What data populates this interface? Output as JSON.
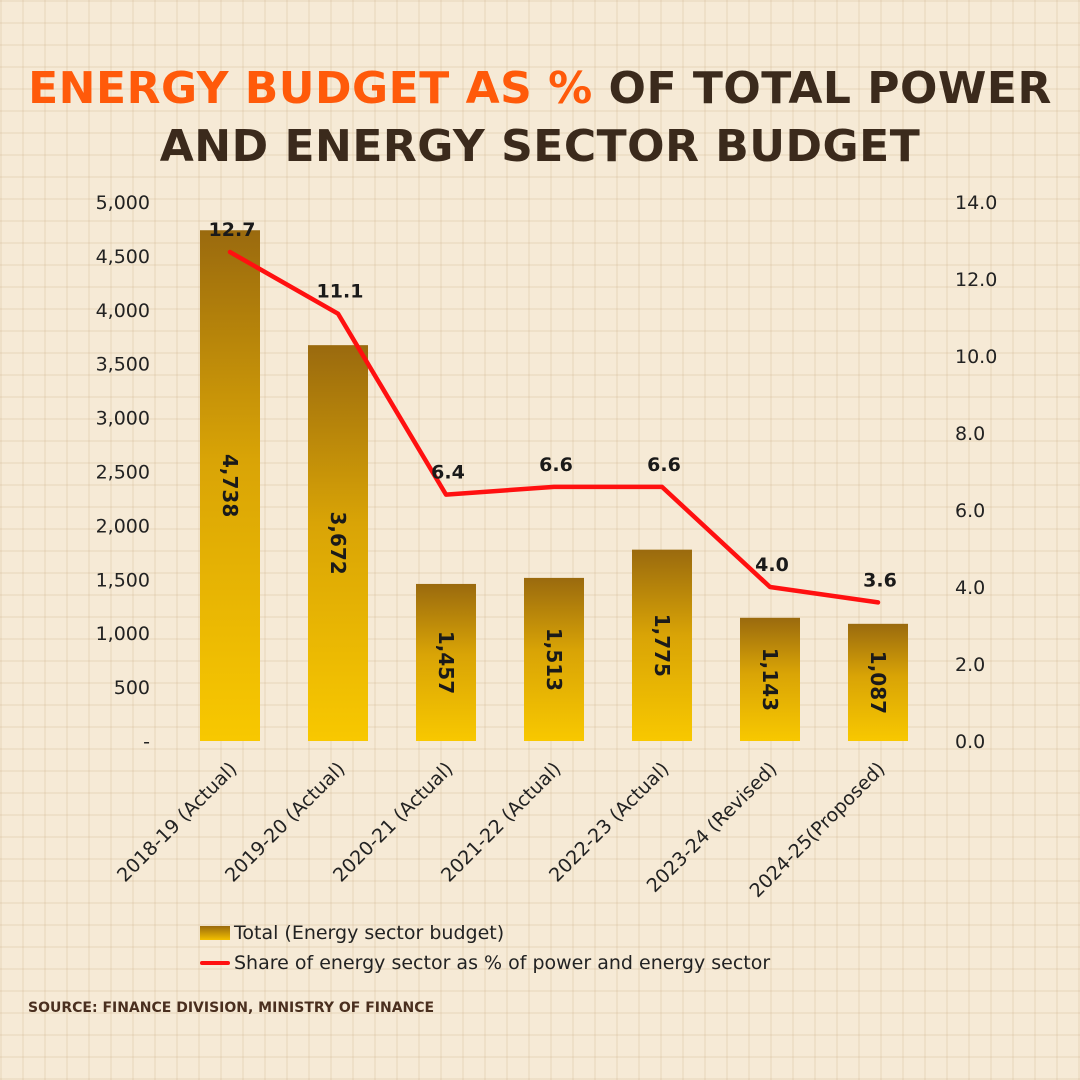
{
  "title": {
    "highlight": "ENERGY BUDGET AS %",
    "line1_rest": " OF TOTAL POWER",
    "line2": "AND ENERGY SECTOR BUDGET"
  },
  "source": "SOURCE: FINANCE DIVISION, MINISTRY OF FINANCE",
  "colors": {
    "highlight": "#ff5a0a",
    "title": "#3b2a1c",
    "bar_top": "#9a6a0e",
    "bar_bottom": "#f8c800",
    "line": "#ff1010"
  },
  "chart_data": {
    "type": "bar",
    "categories": [
      "2018-19 (Actual)",
      "2019-20 (Actual)",
      "2020-21 (Actual)",
      "2021-22 (Actual)",
      "2022-23 (Actual)",
      "2023-24 (Revised)",
      "2024-25(Proposed)"
    ],
    "series": [
      {
        "name": "Total (Energy sector budget)",
        "type": "bar",
        "axis": "left",
        "values": [
          4738,
          3672,
          1457,
          1513,
          1775,
          1143,
          1087
        ],
        "labels": [
          "4,738",
          "3,672",
          "1,457",
          "1,513",
          "1,775",
          "1,143",
          "1,087"
        ]
      },
      {
        "name": "Share of energy sector as % of power and energy sector",
        "type": "line",
        "axis": "right",
        "values": [
          12.7,
          11.1,
          6.4,
          6.6,
          6.6,
          4.0,
          3.6
        ],
        "labels": [
          "12.7",
          "11.1",
          "6.4",
          "6.6",
          "6.6",
          "4.0",
          "3.6"
        ]
      }
    ],
    "y_left": {
      "range": [
        0,
        5000
      ],
      "ticks": [
        "-",
        "500",
        "1,000",
        "1,500",
        "2,000",
        "2,500",
        "3,000",
        "3,500",
        "4,000",
        "4,500",
        "5,000"
      ]
    },
    "y_right": {
      "range": [
        0,
        14
      ],
      "ticks": [
        "0.0",
        "2.0",
        "4.0",
        "6.0",
        "8.0",
        "10.0",
        "12.0",
        "14.0"
      ]
    },
    "grid": false,
    "legend_position": "bottom"
  }
}
